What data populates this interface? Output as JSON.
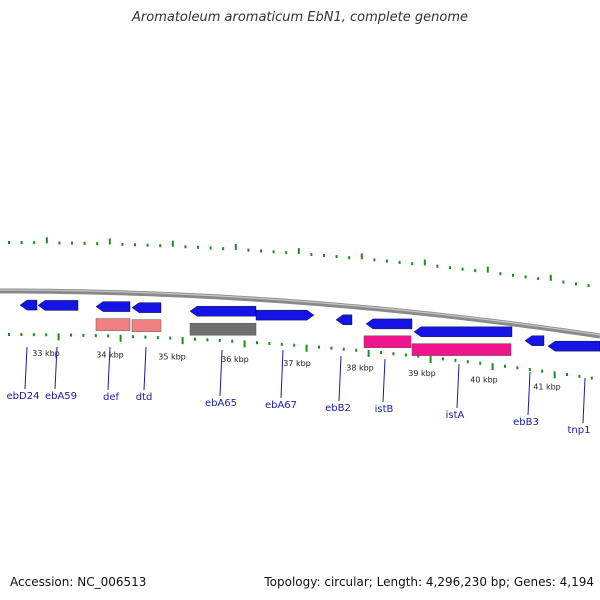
{
  "title": "Aromatoleum aromaticum EbN1, complete genome",
  "footer": {
    "accession": "Accession: NC_006513",
    "topology": "Topology: circular; Length: 4,296,230 bp; Genes: 4,194"
  },
  "colors": {
    "backbone": "#8a8a8a",
    "tick": "#1e8a1e",
    "gene_blue": "#1414e6",
    "gene_pink": "#f08080",
    "gene_grey": "#6e6e6e",
    "gene_magenta": "#f0148c",
    "label": "#1a1aa8"
  },
  "map": {
    "kbp_labels": [
      "33 kbp",
      "34 kbp",
      "35 kbp",
      "36 kbp",
      "37 kbp",
      "38 kbp",
      "39 kbp",
      "40 kbp",
      "41 kbp"
    ],
    "gene_labels": [
      "ebD24",
      "ebA59",
      "def",
      "dtd",
      "ebA65",
      "ebA67",
      "ebB2",
      "istB",
      "istA",
      "ebB3",
      "tnp1"
    ]
  }
}
